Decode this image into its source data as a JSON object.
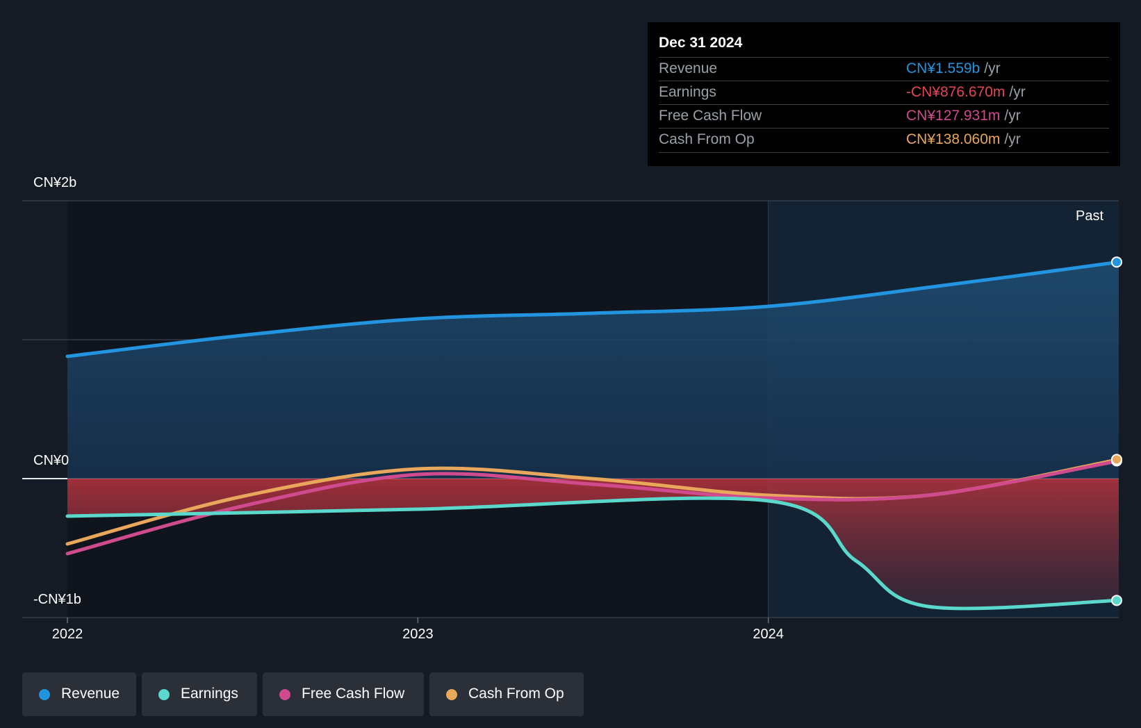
{
  "chart_data": {
    "type": "line",
    "x_range": [
      "2022-01-01",
      "2024-12-31"
    ],
    "y_ticks": [
      {
        "value": 2000000000,
        "label": "CN¥2b"
      },
      {
        "value": 0,
        "label": "CN¥0"
      },
      {
        "value": -1000000000,
        "label": "-CN¥1b"
      }
    ],
    "ylim": [
      -1000000000,
      2000000000
    ],
    "x_ticks": [
      {
        "date": "2022-01-01",
        "label": "2022"
      },
      {
        "date": "2023-01-01",
        "label": "2023"
      },
      {
        "date": "2024-01-01",
        "label": "2024"
      }
    ],
    "past_label": "Past",
    "highlight_start": "2024-01-01",
    "series": [
      {
        "name": "Revenue",
        "color": "#2394df",
        "points": [
          [
            "2022-01-01",
            880000000
          ],
          [
            "2022-07-01",
            1030000000
          ],
          [
            "2023-01-01",
            1150000000
          ],
          [
            "2023-07-01",
            1190000000
          ],
          [
            "2024-01-01",
            1240000000
          ],
          [
            "2024-07-01",
            1390000000
          ],
          [
            "2024-12-31",
            1559000000
          ]
        ]
      },
      {
        "name": "Earnings",
        "color": "#5ad8cb",
        "points": [
          [
            "2022-01-01",
            -270000000
          ],
          [
            "2023-01-01",
            -220000000
          ],
          [
            "2024-01-01",
            -160000000
          ],
          [
            "2024-04-01",
            -590000000
          ],
          [
            "2024-06-15",
            -920000000
          ],
          [
            "2024-12-31",
            -876670000
          ]
        ]
      },
      {
        "name": "Free Cash Flow",
        "color": "#d04b8e",
        "points": [
          [
            "2022-01-01",
            -540000000
          ],
          [
            "2022-07-01",
            -200000000
          ],
          [
            "2023-01-01",
            30000000
          ],
          [
            "2023-07-01",
            -40000000
          ],
          [
            "2024-01-01",
            -140000000
          ],
          [
            "2024-06-15",
            -120000000
          ],
          [
            "2024-12-31",
            127931000
          ]
        ]
      },
      {
        "name": "Cash From Op",
        "color": "#e8a75a",
        "points": [
          [
            "2022-01-01",
            -470000000
          ],
          [
            "2022-07-01",
            -130000000
          ],
          [
            "2023-01-01",
            70000000
          ],
          [
            "2023-07-01",
            0
          ],
          [
            "2024-01-01",
            -120000000
          ],
          [
            "2024-06-15",
            -120000000
          ],
          [
            "2024-12-31",
            138060000
          ]
        ]
      }
    ]
  },
  "tooltip": {
    "date": "Dec 31 2024",
    "rows": [
      {
        "name": "Revenue",
        "value": "CN¥1.559b",
        "unit": "/yr",
        "color": "#2394df"
      },
      {
        "name": "Earnings",
        "value": "-CN¥876.670m",
        "unit": "/yr",
        "color": "#e64553"
      },
      {
        "name": "Free Cash Flow",
        "value": "CN¥127.931m",
        "unit": "/yr",
        "color": "#d04b8e"
      },
      {
        "name": "Cash From Op",
        "value": "CN¥138.060m",
        "unit": "/yr",
        "color": "#e8a75a"
      }
    ]
  },
  "legend": [
    {
      "label": "Revenue",
      "color": "#2394df"
    },
    {
      "label": "Earnings",
      "color": "#5ad8cb"
    },
    {
      "label": "Free Cash Flow",
      "color": "#d04b8e"
    },
    {
      "label": "Cash From Op",
      "color": "#e8a75a"
    }
  ]
}
